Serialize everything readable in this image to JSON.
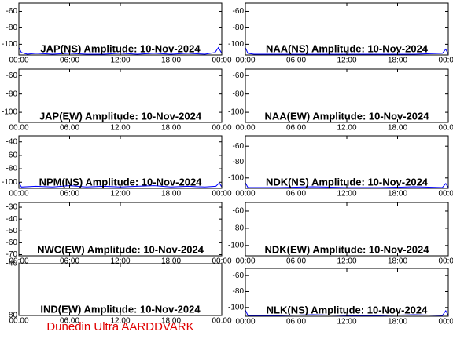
{
  "chart_data": [
    {
      "type": "line",
      "title": "JAP(NS) Amplitude: 10-Nov-2024",
      "xlim": [
        0,
        24
      ],
      "ylim": [
        -113,
        -50
      ],
      "yticks": [
        -100,
        -80,
        -60
      ],
      "xticks": [
        {
          "value": 0,
          "label": "00:00"
        },
        {
          "value": 6,
          "label": "06:00"
        },
        {
          "value": 12,
          "label": "12:00"
        },
        {
          "value": 18,
          "label": "18:00"
        },
        {
          "value": 24,
          "label": "00:00"
        }
      ],
      "x": [
        0,
        0.3,
        1,
        2,
        4,
        6,
        8,
        10,
        12,
        14,
        16,
        18,
        20,
        22,
        23.2,
        23.6,
        24
      ],
      "values": [
        -104,
        -110,
        -112,
        -111,
        -112,
        -111,
        -112,
        -112,
        -111,
        -112,
        -111,
        -112,
        -111,
        -112,
        -110,
        -104,
        -111
      ],
      "color": "#0000ff"
    },
    {
      "type": "line",
      "title": "NAA(NS) Amplitude: 10-Nov-2024",
      "xlim": [
        0,
        24
      ],
      "ylim": [
        -113,
        -50
      ],
      "yticks": [
        -100,
        -80,
        -60
      ],
      "xticks": [
        {
          "value": 0,
          "label": "00:00"
        },
        {
          "value": 6,
          "label": "06:00"
        },
        {
          "value": 12,
          "label": "12:00"
        },
        {
          "value": 18,
          "label": "18:00"
        },
        {
          "value": 24,
          "label": "00:00"
        }
      ],
      "x": [
        0,
        0.3,
        1,
        4,
        8,
        12,
        16,
        20,
        23.3,
        23.7,
        24
      ],
      "values": [
        -104,
        -111,
        -112,
        -112,
        -112,
        -112,
        -112,
        -112,
        -111,
        -106,
        -112
      ],
      "color": "#0000ff"
    },
    {
      "type": "line",
      "title": "JAP(EW) Amplitude: 10-Nov-2024",
      "xlim": [
        0,
        24
      ],
      "ylim": [
        -111,
        -53
      ],
      "yticks": [
        -100,
        -80,
        -60
      ],
      "xticks": [
        {
          "value": 0,
          "label": "00:00"
        },
        {
          "value": 6,
          "label": "06:00"
        },
        {
          "value": 12,
          "label": "12:00"
        },
        {
          "value": 18,
          "label": "18:00"
        },
        {
          "value": 24,
          "label": "00:00"
        }
      ]
    },
    {
      "type": "line",
      "title": "NAA(EW) Amplitude: 10-Nov-2024",
      "xlim": [
        0,
        24
      ],
      "ylim": [
        -111,
        -53
      ],
      "yticks": [
        -100,
        -80,
        -60
      ],
      "xticks": [
        {
          "value": 0,
          "label": "00:00"
        },
        {
          "value": 6,
          "label": "06:00"
        },
        {
          "value": 12,
          "label": "12:00"
        },
        {
          "value": 18,
          "label": "18:00"
        },
        {
          "value": 24,
          "label": "00:00"
        }
      ]
    },
    {
      "type": "line",
      "title": "NPM(NS) Amplitude: 10-Nov-2024",
      "xlim": [
        0,
        24
      ],
      "ylim": [
        -109,
        -31
      ],
      "yticks": [
        -100,
        -80,
        -60,
        -40
      ],
      "xticks": [
        {
          "value": 0,
          "label": "00:00"
        },
        {
          "value": 6,
          "label": "06:00"
        },
        {
          "value": 12,
          "label": "12:00"
        },
        {
          "value": 18,
          "label": "18:00"
        },
        {
          "value": 24,
          "label": "00:00"
        }
      ],
      "x": [
        0,
        0.3,
        2,
        4,
        6,
        8,
        10,
        12,
        14,
        16,
        18,
        20,
        22,
        23.3,
        23.7,
        24
      ],
      "values": [
        -100,
        -107,
        -106,
        -107,
        -105,
        -107,
        -106,
        -107,
        -106,
        -105,
        -107,
        -106,
        -107,
        -106,
        -101,
        -107
      ],
      "color": "#0000ff"
    },
    {
      "type": "line",
      "title": "NDK(NS) Amplitude: 10-Nov-2024",
      "xlim": [
        0,
        24
      ],
      "ylim": [
        -113,
        -47
      ],
      "yticks": [
        -100,
        -80,
        -60
      ],
      "xticks": [
        {
          "value": 0,
          "label": "00:00"
        },
        {
          "value": 6,
          "label": "06:00"
        },
        {
          "value": 12,
          "label": "12:00"
        },
        {
          "value": 18,
          "label": "18:00"
        },
        {
          "value": 24,
          "label": "00:00"
        }
      ],
      "x": [
        0,
        0.3,
        4,
        8,
        12,
        16,
        20,
        23.3,
        23.7,
        24
      ],
      "values": [
        -106,
        -112,
        -112,
        -111,
        -112,
        -112,
        -111,
        -112,
        -107,
        -112
      ],
      "color": "#0000ff"
    },
    {
      "type": "line",
      "title": "NWC(EW) Amplitude: 10-Nov-2024",
      "xlim": [
        0,
        24
      ],
      "ylim": [
        -71,
        -26
      ],
      "yticks": [
        -70,
        -60,
        -50,
        -40,
        -30
      ],
      "xticks": [
        {
          "value": 0,
          "label": "00:00"
        },
        {
          "value": 6,
          "label": "06:00"
        },
        {
          "value": 12,
          "label": "12:00"
        },
        {
          "value": 18,
          "label": "18:00"
        },
        {
          "value": 24,
          "label": "00:00"
        }
      ]
    },
    {
      "type": "line",
      "title": "NDK(EW) Amplitude: 10-Nov-2024",
      "xlim": [
        0,
        24
      ],
      "ylim": [
        -112,
        -50
      ],
      "yticks": [
        -100,
        -80,
        -60
      ],
      "xticks": [
        {
          "value": 0,
          "label": "00:00"
        },
        {
          "value": 6,
          "label": "06:00"
        },
        {
          "value": 12,
          "label": "12:00"
        },
        {
          "value": 18,
          "label": "18:00"
        },
        {
          "value": 24,
          "label": "00:00"
        }
      ]
    },
    {
      "type": "line",
      "title": "IND(EW) Amplitude: 10-Nov-2024",
      "xlim": [
        0,
        24
      ],
      "ylim": [
        -80,
        -40
      ],
      "yticks": [
        -80,
        -40
      ],
      "xticks": [
        {
          "value": 0,
          "label": "00:00"
        },
        {
          "value": 6,
          "label": "06:00"
        },
        {
          "value": 12,
          "label": "12:00"
        },
        {
          "value": 18,
          "label": "18:00"
        },
        {
          "value": 24,
          "label": "00:00"
        }
      ]
    },
    {
      "type": "line",
      "title": "NLK(NS) Amplitude: 10-Nov-2024",
      "xlim": [
        0,
        24
      ],
      "ylim": [
        -111,
        -51
      ],
      "yticks": [
        -100,
        -80,
        -60
      ],
      "xticks": [
        {
          "value": 0,
          "label": "00:00"
        },
        {
          "value": 6,
          "label": "06:00"
        },
        {
          "value": 12,
          "label": "12:00"
        },
        {
          "value": 18,
          "label": "18:00"
        },
        {
          "value": 24,
          "label": "00:00"
        }
      ],
      "x": [
        0,
        0.3,
        4,
        8,
        12,
        16,
        20,
        23.3,
        23.7,
        24
      ],
      "values": [
        -103,
        -110,
        -110,
        -109,
        -110,
        -110,
        -109,
        -110,
        -104,
        -110
      ],
      "color": "#0000ff"
    }
  ],
  "footer": "Dunedin Ultra AARDDVARK"
}
